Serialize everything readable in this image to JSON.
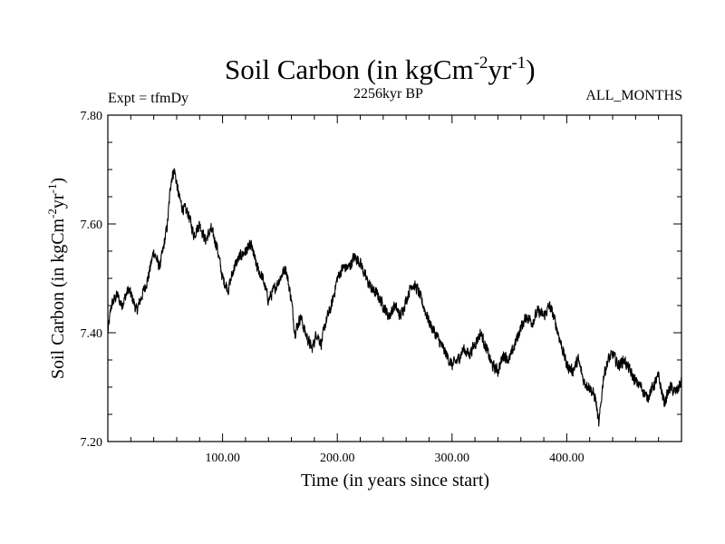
{
  "chart_data": {
    "type": "line",
    "title": "Soil Carbon (in kgCm",
    "title_sup1": "-2",
    "title_mid": "yr",
    "title_sup2": "-1",
    "title_end": ")",
    "experiment_label": "Expt = tfmDy",
    "subtitle": "2256kyr BP",
    "period_label": "ALL_MONTHS",
    "xlabel": "Time (in years since start)",
    "ylabel": "Soil Carbon (in kgCm",
    "ylabel_sup1": "-2",
    "ylabel_mid": "yr",
    "ylabel_sup2": "-1",
    "ylabel_end": ")",
    "xlim": [
      0,
      500
    ],
    "ylim": [
      7.2,
      7.8
    ],
    "x_ticks": [
      100,
      200,
      300,
      400
    ],
    "x_tick_labels": [
      "100.00",
      "200.00",
      "300.00",
      "400.00"
    ],
    "y_ticks": [
      7.2,
      7.4,
      7.6,
      7.8
    ],
    "y_tick_labels": [
      "7.20",
      "7.40",
      "7.60",
      "7.80"
    ],
    "grid": false,
    "series": [
      {
        "name": "Soil Carbon",
        "color": "#000000",
        "noise_amplitude": 0.012,
        "x": [
          0,
          3,
          8,
          12,
          18,
          22,
          25,
          30,
          35,
          40,
          45,
          48,
          52,
          55,
          58,
          62,
          65,
          70,
          75,
          80,
          85,
          90,
          95,
          100,
          105,
          110,
          115,
          120,
          125,
          130,
          135,
          140,
          145,
          150,
          155,
          160,
          163,
          168,
          172,
          178,
          182,
          186,
          190,
          195,
          200,
          205,
          210,
          215,
          220,
          225,
          230,
          235,
          240,
          245,
          250,
          255,
          260,
          265,
          270,
          275,
          280,
          285,
          290,
          295,
          300,
          305,
          310,
          315,
          320,
          325,
          330,
          335,
          340,
          345,
          350,
          355,
          360,
          365,
          370,
          375,
          380,
          385,
          390,
          395,
          400,
          405,
          410,
          415,
          420,
          425,
          428,
          432,
          436,
          440,
          445,
          450,
          455,
          460,
          465,
          470,
          475,
          480,
          485,
          490,
          495,
          500
        ],
        "y": [
          7.4,
          7.45,
          7.47,
          7.45,
          7.48,
          7.46,
          7.44,
          7.47,
          7.5,
          7.55,
          7.52,
          7.55,
          7.6,
          7.68,
          7.7,
          7.65,
          7.63,
          7.62,
          7.58,
          7.6,
          7.57,
          7.59,
          7.56,
          7.5,
          7.48,
          7.52,
          7.54,
          7.55,
          7.56,
          7.52,
          7.5,
          7.46,
          7.48,
          7.5,
          7.52,
          7.46,
          7.4,
          7.43,
          7.4,
          7.37,
          7.4,
          7.38,
          7.42,
          7.45,
          7.5,
          7.52,
          7.52,
          7.54,
          7.53,
          7.5,
          7.48,
          7.47,
          7.45,
          7.43,
          7.45,
          7.43,
          7.46,
          7.49,
          7.48,
          7.45,
          7.42,
          7.4,
          7.38,
          7.36,
          7.34,
          7.35,
          7.37,
          7.36,
          7.38,
          7.4,
          7.37,
          7.34,
          7.33,
          7.36,
          7.35,
          7.38,
          7.41,
          7.43,
          7.42,
          7.44,
          7.43,
          7.45,
          7.42,
          7.38,
          7.34,
          7.33,
          7.35,
          7.31,
          7.3,
          7.28,
          7.23,
          7.32,
          7.35,
          7.36,
          7.34,
          7.35,
          7.33,
          7.31,
          7.3,
          7.28,
          7.3,
          7.32,
          7.27,
          7.3,
          7.29,
          7.31
        ]
      }
    ]
  }
}
